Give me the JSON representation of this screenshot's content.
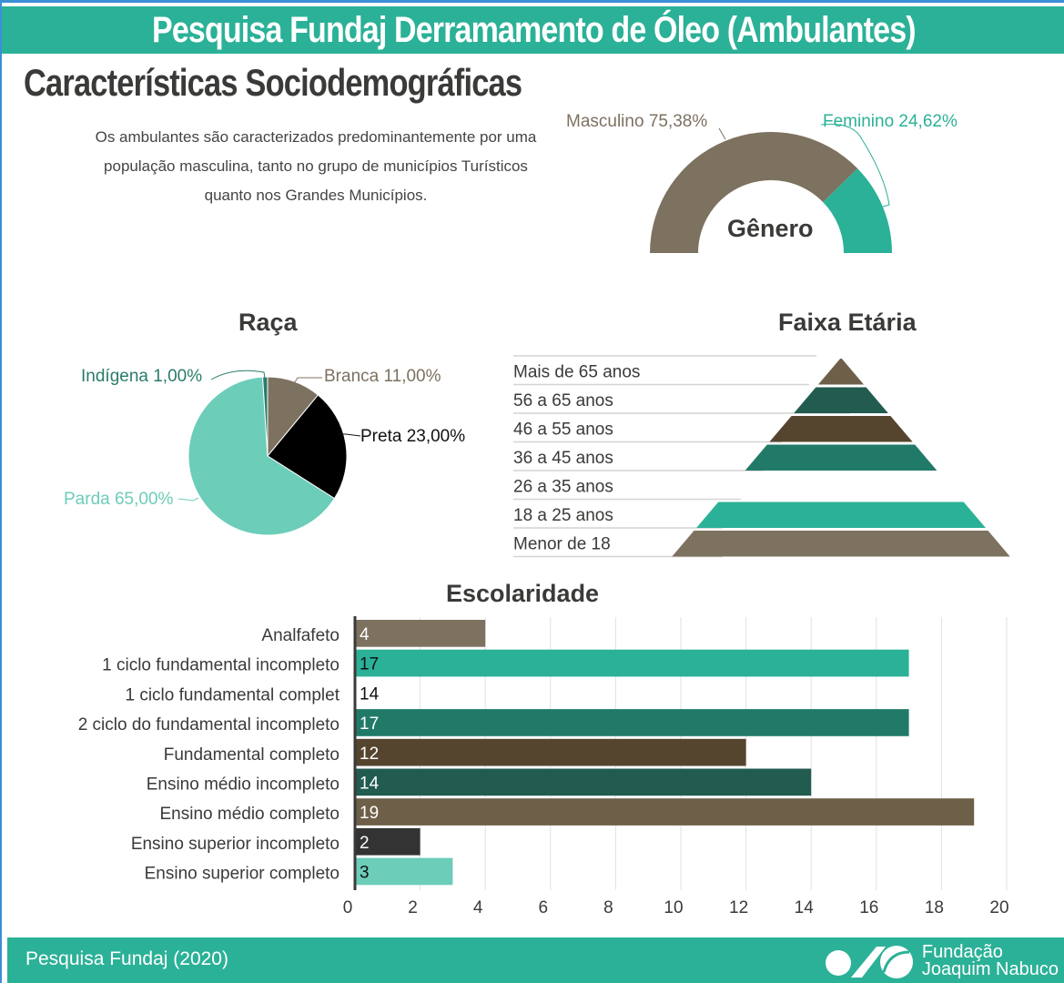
{
  "header": {
    "title": "Pesquisa Fundaj Derramamento de Óleo (Ambulantes)"
  },
  "section_title": "Características Sociodemográficas",
  "description": "Os ambulantes são caracterizados predominantemente por uma população masculina, tanto no grupo de municípios Turísticos quanto nos Grandes Municípios.",
  "footer": {
    "source": "Pesquisa Fundaj (2020)",
    "logo_line1": "Fundação",
    "logo_line2": "Joaquim Nabuco"
  },
  "chart_data": [
    {
      "type": "pie",
      "variant": "half-donut",
      "title": "Gênero",
      "slices": [
        {
          "label": "Masculino 75,38%",
          "value": 75.38,
          "color": "#7d7160"
        },
        {
          "label": "Feminino 24,62%",
          "value": 24.62,
          "color": "#2bb197"
        }
      ]
    },
    {
      "type": "pie",
      "title": "Raça",
      "slices": [
        {
          "label": "Branca 11,00%",
          "value": 11,
          "color": "#7d7160"
        },
        {
          "label": "Preta 23,00%",
          "value": 23,
          "color": "#000000"
        },
        {
          "label": "Parda 65,00%",
          "value": 65,
          "color": "#6ccdb9"
        },
        {
          "label": "Indígena 1,00%",
          "value": 1,
          "color": "#2a7b6a"
        }
      ]
    },
    {
      "type": "pyramid",
      "title": "Faixa Etária",
      "categories": [
        "Mais de 65 anos",
        "56 a 65 anos",
        "46 a 55 anos",
        "36 a 45 anos",
        "26 a 35 anos",
        "18 a 25 anos",
        "Menor de 18"
      ],
      "colors": [
        "#6e6048",
        "#225b50",
        "#55452e",
        "#217a68",
        null,
        "#2bb197",
        "#7d7160"
      ]
    },
    {
      "type": "bar",
      "orientation": "horizontal",
      "title": "Escolaridade",
      "categories": [
        "Analfafeto",
        "1 ciclo fundamental incompleto",
        "1 ciclo fundamental complet",
        "2 ciclo do fundamental incompleto",
        "Fundamental completo",
        "Ensino médio incompleto",
        "Ensino médio completo",
        "Ensino superior incompleto",
        "Ensino superior completo"
      ],
      "values": [
        4,
        17,
        14,
        17,
        12,
        14,
        19,
        2,
        3
      ],
      "colors": [
        "#7d7160",
        "#2bb197",
        null,
        "#217a68",
        "#55452e",
        "#225b50",
        "#6e6048",
        "#333333",
        "#6ccdb9"
      ],
      "xlim": [
        0,
        20
      ],
      "xticks": [
        0,
        2,
        4,
        6,
        8,
        10,
        12,
        14,
        16,
        18,
        20
      ],
      "grid": true
    }
  ]
}
